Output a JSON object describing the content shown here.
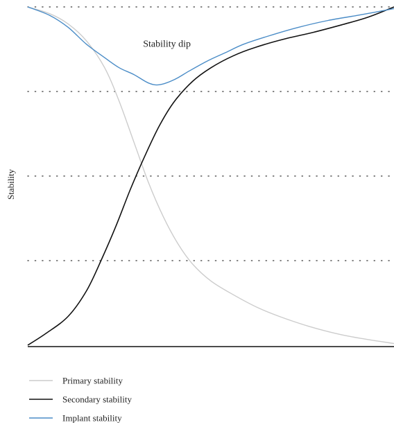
{
  "chart_data": {
    "type": "line",
    "title": "",
    "xlabel": "",
    "ylabel": "Stability",
    "xlim": [
      0,
      100
    ],
    "ylim": [
      0,
      100
    ],
    "grid": {
      "y": true,
      "x": false,
      "style": "dotted"
    },
    "gridlines_y": [
      25,
      50,
      75,
      100
    ],
    "annotation": {
      "text": "Stability dip",
      "x": 38,
      "y": 89
    },
    "legend": {
      "position": "bottom-left"
    },
    "series": [
      {
        "name": "Primary stability",
        "color": "#cccccc",
        "points": [
          [
            0,
            100
          ],
          [
            6,
            98
          ],
          [
            11,
            95
          ],
          [
            16,
            90
          ],
          [
            21,
            82
          ],
          [
            25,
            72
          ],
          [
            29,
            60
          ],
          [
            33,
            48
          ],
          [
            37,
            38
          ],
          [
            41,
            30
          ],
          [
            45,
            24
          ],
          [
            50,
            19
          ],
          [
            56,
            15
          ],
          [
            63,
            11
          ],
          [
            70,
            8
          ],
          [
            77,
            5.5
          ],
          [
            84,
            3.5
          ],
          [
            91,
            2
          ],
          [
            100,
            0.5
          ]
        ]
      },
      {
        "name": "Secondary stability",
        "color": "#111111",
        "points": [
          [
            0,
            0
          ],
          [
            5,
            3.5
          ],
          [
            11,
            8.5
          ],
          [
            16,
            16
          ],
          [
            20,
            25
          ],
          [
            24,
            35
          ],
          [
            28,
            46
          ],
          [
            32,
            56
          ],
          [
            36,
            65
          ],
          [
            40,
            72
          ],
          [
            45,
            78
          ],
          [
            50,
            82
          ],
          [
            56,
            85.5
          ],
          [
            62,
            88
          ],
          [
            70,
            90.5
          ],
          [
            78,
            92.5
          ],
          [
            86,
            94.8
          ],
          [
            93,
            97
          ],
          [
            100,
            100
          ]
        ]
      },
      {
        "name": "Implant stability",
        "color": "#4a8cc7",
        "points": [
          [
            0,
            100
          ],
          [
            6,
            97.5
          ],
          [
            11,
            94
          ],
          [
            16,
            89
          ],
          [
            21,
            85
          ],
          [
            25,
            82
          ],
          [
            29,
            80
          ],
          [
            33,
            77.5
          ],
          [
            36,
            77
          ],
          [
            40,
            78.5
          ],
          [
            44,
            81
          ],
          [
            49,
            84
          ],
          [
            54,
            86.5
          ],
          [
            59,
            89
          ],
          [
            66,
            91.5
          ],
          [
            74,
            94
          ],
          [
            82,
            96
          ],
          [
            90,
            97.5
          ],
          [
            100,
            99.5
          ]
        ]
      }
    ]
  }
}
